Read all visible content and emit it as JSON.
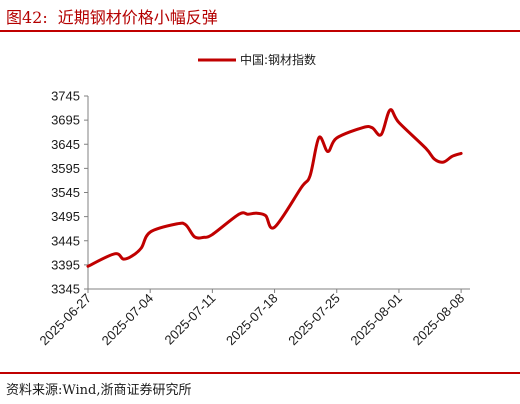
{
  "title": {
    "figure_number": "图42:",
    "text": "近期钢材价格小幅反弹"
  },
  "source": "资料来源:Wind,浙商证券研究所",
  "colors": {
    "accent": "#c00000",
    "series": "#c00000",
    "axis": "#808080",
    "text": "#1a1a1a"
  },
  "chart_data": {
    "type": "line",
    "title": "",
    "xlabel": "",
    "ylabel": "",
    "ylim": [
      3345,
      3745
    ],
    "yticks": [
      3345,
      3395,
      3445,
      3495,
      3545,
      3595,
      3645,
      3695,
      3745
    ],
    "xlim": [
      "2025-06-27",
      "2025-08-09"
    ],
    "xticks": [
      "2025-06-27",
      "2025-07-04",
      "2025-07-11",
      "2025-07-18",
      "2025-07-25",
      "2025-08-01",
      "2025-08-08"
    ],
    "grid": false,
    "legend_position": "top-center",
    "series": [
      {
        "name": "中国:钢材指数",
        "x": [
          "2025-06-27",
          "2025-06-30",
          "2025-07-01",
          "2025-07-02",
          "2025-07-03",
          "2025-07-04",
          "2025-07-07",
          "2025-07-08",
          "2025-07-09",
          "2025-07-10",
          "2025-07-11",
          "2025-07-14",
          "2025-07-15",
          "2025-07-16",
          "2025-07-17",
          "2025-07-18",
          "2025-07-21",
          "2025-07-22",
          "2025-07-23",
          "2025-07-24",
          "2025-07-25",
          "2025-07-28",
          "2025-07-29",
          "2025-07-30",
          "2025-07-31",
          "2025-08-01",
          "2025-08-04",
          "2025-08-05",
          "2025-08-06",
          "2025-08-07",
          "2025-08-08"
        ],
        "values": [
          3392,
          3418,
          3407,
          3414,
          3430,
          3463,
          3480,
          3478,
          3453,
          3452,
          3458,
          3500,
          3500,
          3502,
          3497,
          3473,
          3555,
          3580,
          3659,
          3630,
          3658,
          3680,
          3679,
          3665,
          3716,
          3690,
          3637,
          3614,
          3608,
          3620,
          3626
        ]
      }
    ]
  }
}
